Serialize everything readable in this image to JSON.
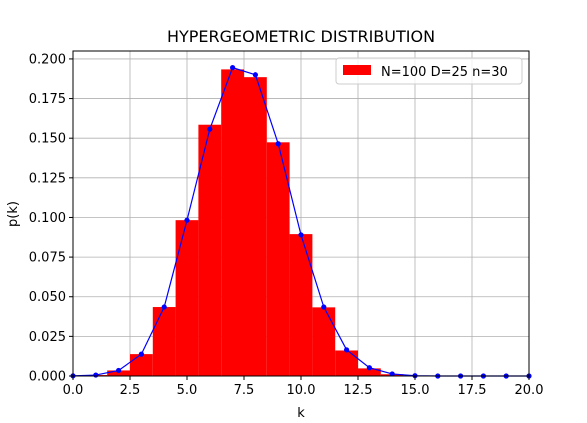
{
  "chart_data": {
    "type": "bar",
    "title": "HYPERGEOMETRIC DISTRIBUTION",
    "xlabel": "k",
    "ylabel": "p(k)",
    "xlim": [
      0,
      20
    ],
    "ylim": [
      0,
      0.205
    ],
    "xticks": [
      "0.0",
      "2.5",
      "5.0",
      "7.5",
      "10.0",
      "12.5",
      "15.0",
      "17.5",
      "20.0"
    ],
    "xtick_values": [
      0,
      2.5,
      5,
      7.5,
      10,
      12.5,
      15,
      17.5,
      20
    ],
    "yticks": [
      "0.000",
      "0.025",
      "0.050",
      "0.075",
      "0.100",
      "0.125",
      "0.150",
      "0.175",
      "0.200"
    ],
    "ytick_values": [
      0,
      0.025,
      0.05,
      0.075,
      0.1,
      0.125,
      0.15,
      0.175,
      0.2
    ],
    "grid": true,
    "legend": {
      "position": "top-right",
      "entries": [
        "N=100 D=25 n=30"
      ]
    },
    "series": [
      {
        "name": "N=100 D=25 n=30",
        "kind": "bar",
        "color": "#ff0000",
        "x": [
          0,
          1,
          2,
          3,
          4,
          5,
          6,
          7,
          8,
          9,
          10,
          11,
          12,
          13,
          14,
          15,
          16,
          17,
          18,
          19,
          20
        ],
        "values": [
          0.0001,
          0.0006,
          0.0035,
          0.0138,
          0.0435,
          0.0983,
          0.1585,
          0.1934,
          0.1885,
          0.1474,
          0.0895,
          0.0433,
          0.0161,
          0.0048,
          0.0011,
          0.0002,
          0.0,
          0.0,
          0.0,
          0.0,
          0.0
        ]
      },
      {
        "kind": "line",
        "color": "#0000ff",
        "marker": "circle",
        "x": [
          0,
          1,
          2,
          3,
          4,
          5,
          6,
          7,
          8,
          9,
          10,
          11,
          12,
          13,
          14,
          15,
          16,
          17,
          18,
          19,
          20
        ],
        "values": [
          0.0001,
          0.0006,
          0.0035,
          0.0138,
          0.0435,
          0.0983,
          0.1557,
          0.1945,
          0.19,
          0.1465,
          0.089,
          0.0435,
          0.0165,
          0.0052,
          0.0013,
          0.0002,
          0.0,
          0.0,
          0.0,
          0.0,
          0.0
        ]
      }
    ]
  }
}
